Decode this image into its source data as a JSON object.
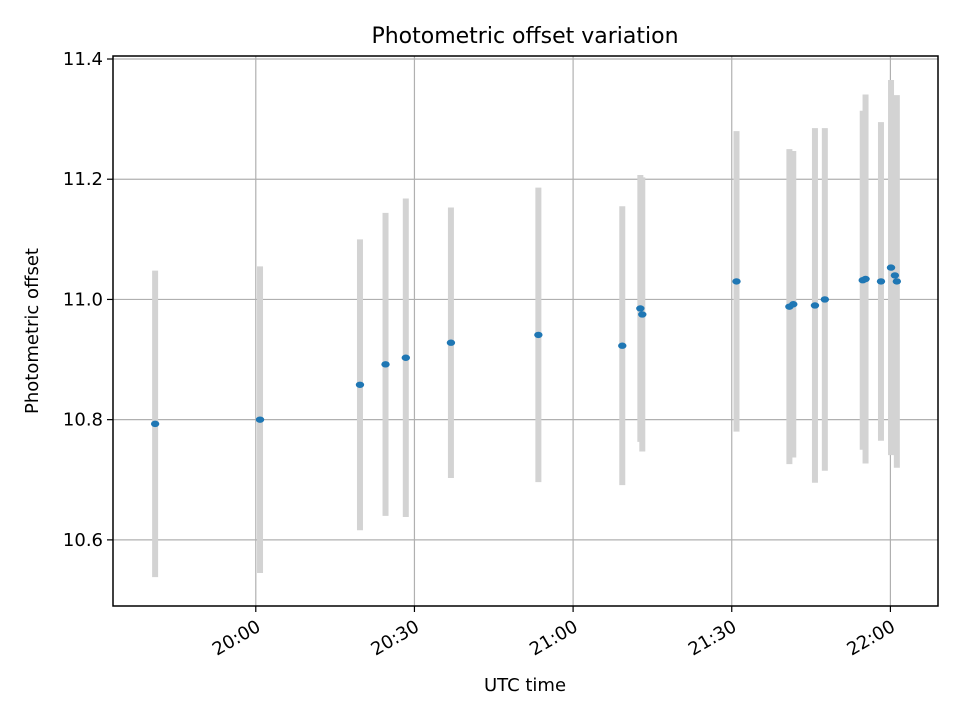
{
  "chart_data": {
    "type": "scatter",
    "title": "Photometric offset variation",
    "xlabel": "UTC time",
    "ylabel": "Photometric offset",
    "xlim": [
      "19:33",
      "22:09"
    ],
    "ylim": [
      10.49,
      11.405
    ],
    "x_ticks": [
      "20:00",
      "20:30",
      "21:00",
      "21:30",
      "22:00"
    ],
    "y_ticks": [
      10.6,
      10.8,
      11.0,
      11.2,
      11.4
    ],
    "y_tick_labels": [
      "10.6",
      "10.8",
      "11.0",
      "11.2",
      "11.4"
    ],
    "grid": true,
    "point_color": "#1f77b4",
    "errorbar_color": "#d3d3d3",
    "points": [
      {
        "x": "19:40:58",
        "y": 10.793,
        "yerr": 0.255
      },
      {
        "x": "20:00:48",
        "y": 10.8,
        "yerr": 0.255
      },
      {
        "x": "20:19:42",
        "y": 10.858,
        "yerr": 0.242
      },
      {
        "x": "20:24:32",
        "y": 10.892,
        "yerr": 0.252
      },
      {
        "x": "20:28:22",
        "y": 10.903,
        "yerr": 0.265
      },
      {
        "x": "20:36:54",
        "y": 10.928,
        "yerr": 0.225
      },
      {
        "x": "20:53:26",
        "y": 10.941,
        "yerr": 0.245
      },
      {
        "x": "21:09:18",
        "y": 10.923,
        "yerr": 0.232
      },
      {
        "x": "21:12:43",
        "y": 10.985,
        "yerr": 0.222
      },
      {
        "x": "21:13:05",
        "y": 10.975,
        "yerr": 0.228
      },
      {
        "x": "21:30:54",
        "y": 11.03,
        "yerr": 0.25
      },
      {
        "x": "21:40:54",
        "y": 10.988,
        "yerr": 0.262
      },
      {
        "x": "21:41:38",
        "y": 10.992,
        "yerr": 0.255
      },
      {
        "x": "21:45:44",
        "y": 10.99,
        "yerr": 0.295
      },
      {
        "x": "21:47:36",
        "y": 11.0,
        "yerr": 0.285
      },
      {
        "x": "21:54:46",
        "y": 11.032,
        "yerr": 0.282
      },
      {
        "x": "21:55:18",
        "y": 11.034,
        "yerr": 0.307
      },
      {
        "x": "21:58:13",
        "y": 11.03,
        "yerr": 0.265
      },
      {
        "x": "22:00:07",
        "y": 11.053,
        "yerr": 0.312
      },
      {
        "x": "22:00:51",
        "y": 11.04,
        "yerr": 0.298
      },
      {
        "x": "22:01:13",
        "y": 11.03,
        "yerr": 0.31
      }
    ]
  }
}
